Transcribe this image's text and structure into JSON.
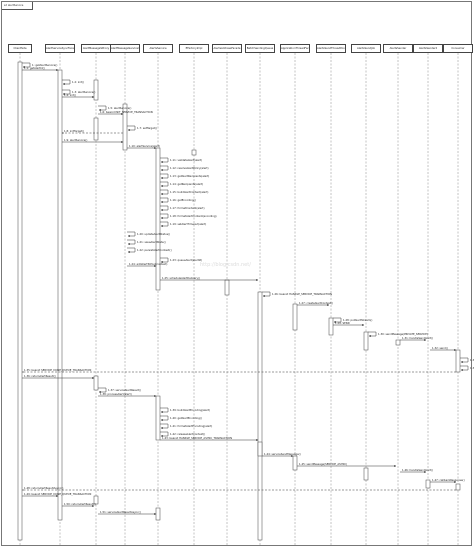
{
  "frame": {
    "title": "sd alertService"
  },
  "watermark": "http://blog.csdn.net/",
  "participants": [
    "ClientSide",
    "AlertServiceSyncFacade",
    "AlertMessageSProxy",
    "AlertMessageServiceImpl",
    "AlertsService",
    "EFactoryImpl",
    "AlertsAddressFacade",
    "BatchSendingQueue",
    "ApplicationThreadFactory",
    "AlertsSendThreadPoolExecutor",
    "AlertsSendJob",
    "AlertsSender",
    "AlertsSender2",
    "Consumer"
  ],
  "messages": [
    "1: getAlertService()",
    "1.1: getAlertId()",
    "1.2: init()",
    "1.3: alertService()",
    "1.4: init()",
    "1.5: alertService()",
    "1.6: beanid INIT_SERVICE_TRANSACTION",
    "1.7: setTarget()",
    "1.8: initTarget()",
    "1.9: alertService()",
    "1.10: alertService(alert)",
    "1.11: validateAlert(alert)",
    "1.12: resolveAlertPolicy(alert)",
    "1.13: getAlertRecipients(alert)",
    "1.14: getRecipients(alert)",
    "1.15: buildAlertContent(alert)",
    "1.16: getEncoding()",
    "1.17: formatContent(alert)",
    "1.18: formatAlertContent(encoding)",
    "1.19: setAlertTimeout(alert)",
    "1.20: updateAlertStatus()",
    "1.21: saveAlertState()",
    "1.22: persistAlertContext()",
    "1.23: queueAlert(alertId)",
    "1.24: addAlertToPool(context)",
    "1.25: scheduleAlertDelivery()",
    "1.26: beanid HANDLE_SERVICE_TRANSACTION",
    "1.27: createAlertContext()",
    "1.28: putAlertStream()",
    "1.29: SEND",
    "1.30: sendMessage(PRIVATE_SERVICE)",
    "1.31: handleSendAlert()",
    "1.32: send()",
    "1.33: callback()",
    "1.34: returnAlertResult()",
    "1.35: beanid SERVICE_DONE_QUEUE_TRANSACTION",
    "1.36: returnAlertResult()",
    "1.37: serviceAlertResult()",
    "1.38: processAlert(alert)",
    "1.39: buildAlertEncoding(alert)",
    "1.40: getAlertEncoding()",
    "1.41: formatAlertEncoding(alert)",
    "1.42: releaseAlertContext()",
    "1.43: beanid HANDLE_SERVICE_ASYNC_TRANSACTION",
    "1.44: serviceSendMessage()",
    "1.45: sendMessage(SERVICE_ASYNC)",
    "1.46: handleSendAlert()",
    "1.47: callbackResponse()",
    "1.48: returnAlertResultAsync()",
    "1.49: beanid SERVICE_DONE_QUEUE_TRANSACTION",
    "1.50: returnAlertResult()",
    "1.51: serviceAlertResultAsync()"
  ]
}
